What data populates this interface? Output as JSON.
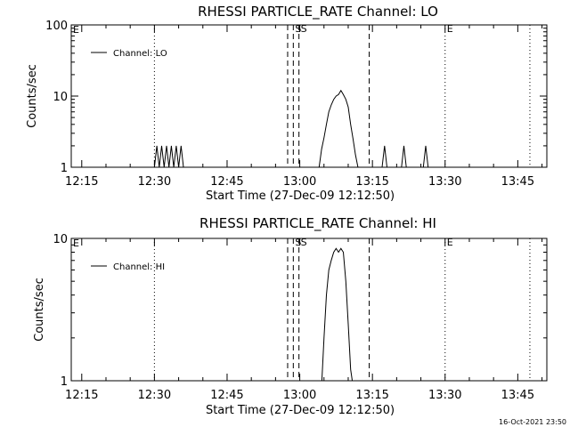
{
  "footer_timestamp": "16-Oct-2021 23:50",
  "chart_data": [
    {
      "type": "line",
      "title": "RHESSI PARTICLE_RATE Channel: LO",
      "xlabel": "Start Time (27-Dec-09 12:12:50)",
      "ylabel": "Counts/sec",
      "yscale": "log",
      "ylim": [
        1,
        100
      ],
      "y_ticks": [
        "1",
        "10",
        "100"
      ],
      "xlim": [
        "12:12:50",
        "13:51:00"
      ],
      "x_ticks": [
        "12:15",
        "12:30",
        "12:45",
        "13:00",
        "13:15",
        "13:30",
        "13:45"
      ],
      "legend": "top-left",
      "series": [
        {
          "name": "Channel: LO",
          "x": [
            "12:12:50",
            "12:30:00",
            "12:30:30",
            "12:31:00",
            "12:31:30",
            "12:32:00",
            "12:32:30",
            "12:33:00",
            "12:33:30",
            "12:34:00",
            "12:34:30",
            "12:35:00",
            "12:35:30",
            "12:36:00",
            "12:36:30",
            "13:04:00",
            "13:04:30",
            "13:05:00",
            "13:05:30",
            "13:06:00",
            "13:06:30",
            "13:07:00",
            "13:07:30",
            "13:08:00",
            "13:08:30",
            "13:09:00",
            "13:09:30",
            "13:10:00",
            "13:10:30",
            "13:11:00",
            "13:11:30",
            "13:12:00",
            "13:17:00",
            "13:17:30",
            "13:18:00",
            "13:21:00",
            "13:21:30",
            "13:22:00",
            "13:25:30",
            "13:26:00",
            "13:26:30",
            "13:51:00"
          ],
          "y": [
            1,
            1,
            2,
            1,
            2,
            1,
            2,
            1,
            2,
            1,
            2,
            1,
            2,
            1,
            1,
            1,
            1.8,
            2.6,
            4,
            6,
            7.5,
            9,
            10,
            10.5,
            12,
            10.5,
            9,
            7,
            4,
            2.5,
            1.5,
            1,
            1,
            2,
            1,
            1,
            2,
            1,
            1,
            2,
            1,
            1
          ]
        }
      ],
      "events": [
        {
          "time": "12:30:00",
          "label": "",
          "style": "dotted"
        },
        {
          "time": "12:57:30",
          "label": "",
          "style": "dashed"
        },
        {
          "time": "12:58:40",
          "label": "S",
          "style": "dashed"
        },
        {
          "time": "12:59:50",
          "label": "S",
          "style": "dashed"
        },
        {
          "time": "13:14:20",
          "label": "",
          "style": "dashed"
        },
        {
          "time": "13:30:00",
          "label": "E",
          "style": "dotted"
        },
        {
          "time": "13:47:30",
          "label": "",
          "style": "dotted"
        }
      ],
      "left_edge_label": "E"
    },
    {
      "type": "line",
      "title": "RHESSI PARTICLE_RATE Channel: HI",
      "xlabel": "Start Time (27-Dec-09 12:12:50)",
      "ylabel": "Counts/sec",
      "yscale": "log",
      "ylim": [
        1,
        10
      ],
      "y_ticks": [
        "1",
        "10"
      ],
      "xlim": [
        "12:12:50",
        "13:51:00"
      ],
      "x_ticks": [
        "12:15",
        "12:30",
        "12:45",
        "13:00",
        "13:15",
        "13:30",
        "13:45"
      ],
      "legend": "top-left",
      "series": [
        {
          "name": "Channel: HI",
          "x": [
            "12:12:50",
            "13:04:30",
            "13:05:00",
            "13:05:30",
            "13:06:00",
            "13:06:30",
            "13:07:00",
            "13:07:30",
            "13:08:00",
            "13:08:30",
            "13:09:00",
            "13:09:30",
            "13:10:00",
            "13:10:30",
            "13:11:00",
            "13:51:00"
          ],
          "y": [
            0.9,
            0.9,
            2,
            4,
            6,
            7,
            8,
            8.5,
            8,
            8.5,
            8,
            5,
            2.5,
            1.2,
            0.9,
            0.9
          ]
        }
      ],
      "events": [
        {
          "time": "12:30:00",
          "label": "",
          "style": "dotted"
        },
        {
          "time": "12:57:30",
          "label": "",
          "style": "dashed"
        },
        {
          "time": "12:58:40",
          "label": "S",
          "style": "dashed"
        },
        {
          "time": "12:59:50",
          "label": "S",
          "style": "dashed"
        },
        {
          "time": "13:14:20",
          "label": "",
          "style": "dashed"
        },
        {
          "time": "13:30:00",
          "label": "E",
          "style": "dotted"
        },
        {
          "time": "13:47:30",
          "label": "",
          "style": "dotted"
        }
      ],
      "left_edge_label": "E"
    }
  ]
}
